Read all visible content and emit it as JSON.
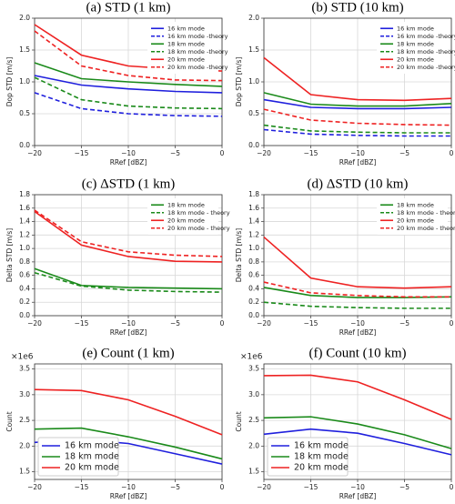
{
  "chart_data": [
    {
      "type": "line",
      "title": "(a)  STD (1 km)",
      "x_label": "RRef [dBZ]",
      "y_label": "Dop STD [m/s]",
      "x": [
        -20,
        -15,
        -10,
        -5,
        0
      ],
      "xlim": [
        -20,
        0
      ],
      "xticks": [
        {
          "value": -20,
          "label": "−20"
        },
        {
          "value": -15,
          "label": "−15"
        },
        {
          "value": -10,
          "label": "−10"
        },
        {
          "value": -5,
          "label": "−5"
        },
        0
      ],
      "ylim": [
        0,
        2.0
      ],
      "yticks": [
        {
          "value": 0,
          "label": "0.0"
        },
        0.5,
        {
          "value": 1,
          "label": "1.0"
        },
        1.5,
        {
          "value": 2,
          "label": "2.0"
        }
      ],
      "grid": true,
      "legend": "upper right",
      "series": [
        {
          "name": "16 km mode",
          "color": "#1f1fdd",
          "linestyle": "solid",
          "values": [
            1.1,
            0.95,
            0.89,
            0.85,
            0.83
          ]
        },
        {
          "name": "16 km mode -theory",
          "color": "#1f1fdd",
          "linestyle": "dashed",
          "values": [
            0.83,
            0.58,
            0.5,
            0.47,
            0.46
          ]
        },
        {
          "name": "18 km mode",
          "color": "#1a8a1a",
          "linestyle": "solid",
          "values": [
            1.3,
            1.05,
            1.0,
            0.96,
            0.93
          ]
        },
        {
          "name": "18 km mode -theory",
          "color": "#1a8a1a",
          "linestyle": "dashed",
          "values": [
            1.07,
            0.72,
            0.62,
            0.59,
            0.58
          ]
        },
        {
          "name": "20 km mode",
          "color": "#ee2222",
          "linestyle": "solid",
          "values": [
            1.9,
            1.42,
            1.25,
            1.2,
            1.17
          ]
        },
        {
          "name": "20 km mode -theory",
          "color": "#ee2222",
          "linestyle": "dashed",
          "values": [
            1.8,
            1.25,
            1.1,
            1.03,
            1.02
          ]
        }
      ]
    },
    {
      "type": "line",
      "title": "(b) STD (10 km)",
      "x_label": "RRef [dBZ]",
      "y_label": "Dop STD [m/s]",
      "x": [
        -20,
        -15,
        -10,
        -5,
        0
      ],
      "xlim": [
        -20,
        0
      ],
      "xticks": [
        {
          "value": -20,
          "label": "−20"
        },
        {
          "value": -15,
          "label": "−15"
        },
        {
          "value": -10,
          "label": "−10"
        },
        {
          "value": -5,
          "label": "−5"
        },
        0
      ],
      "ylim": [
        0,
        2.0
      ],
      "yticks": [
        {
          "value": 0,
          "label": "0.0"
        },
        0.5,
        {
          "value": 1,
          "label": "1.0"
        },
        1.5,
        {
          "value": 2,
          "label": "2.0"
        }
      ],
      "grid": true,
      "legend": "upper right",
      "series": [
        {
          "name": "16 km mode",
          "color": "#1f1fdd",
          "linestyle": "solid",
          "values": [
            0.72,
            0.6,
            0.58,
            0.58,
            0.6
          ]
        },
        {
          "name": "16 km mode -theory",
          "color": "#1f1fdd",
          "linestyle": "dashed",
          "values": [
            0.25,
            0.18,
            0.16,
            0.15,
            0.15
          ]
        },
        {
          "name": "18 km mode",
          "color": "#1a8a1a",
          "linestyle": "solid",
          "values": [
            0.83,
            0.65,
            0.62,
            0.62,
            0.66
          ]
        },
        {
          "name": "18 km mode -theory",
          "color": "#1a8a1a",
          "linestyle": "dashed",
          "values": [
            0.32,
            0.23,
            0.21,
            0.2,
            0.2
          ]
        },
        {
          "name": "20 km mode",
          "color": "#ee2222",
          "linestyle": "solid",
          "values": [
            1.38,
            0.8,
            0.72,
            0.71,
            0.74
          ]
        },
        {
          "name": "20 km mode -theory",
          "color": "#ee2222",
          "linestyle": "dashed",
          "values": [
            0.57,
            0.4,
            0.35,
            0.33,
            0.32
          ]
        }
      ]
    },
    {
      "type": "line",
      "title": "(c)  ΔSTD (1 km)",
      "x_label": "RRef [dBZ]",
      "y_label": "Delta STD [m/s]",
      "x": [
        -20,
        -15,
        -10,
        -5,
        0
      ],
      "xlim": [
        -20,
        0
      ],
      "xticks": [
        {
          "value": -20,
          "label": "−20"
        },
        {
          "value": -15,
          "label": "−15"
        },
        {
          "value": -10,
          "label": "−10"
        },
        {
          "value": -5,
          "label": "−5"
        },
        0
      ],
      "ylim": [
        0,
        1.8
      ],
      "yticks": [
        {
          "value": 0,
          "label": "0.0"
        },
        0.2,
        0.4,
        0.6,
        0.8,
        {
          "value": 1,
          "label": "1.0"
        },
        1.2,
        1.4,
        1.6,
        1.8
      ],
      "grid": true,
      "legend": "upper right",
      "series": [
        {
          "name": "18 km mode",
          "color": "#1a8a1a",
          "linestyle": "solid",
          "values": [
            0.7,
            0.45,
            0.42,
            0.41,
            0.4
          ]
        },
        {
          "name": "18 km mode - theory",
          "color": "#1a8a1a",
          "linestyle": "dashed",
          "values": [
            0.64,
            0.44,
            0.38,
            0.36,
            0.35
          ]
        },
        {
          "name": "20 km mode",
          "color": "#ee2222",
          "linestyle": "solid",
          "values": [
            1.55,
            1.05,
            0.88,
            0.81,
            0.8
          ]
        },
        {
          "name": "20 km mode - theory",
          "color": "#ee2222",
          "linestyle": "dashed",
          "values": [
            1.57,
            1.1,
            0.95,
            0.9,
            0.88
          ]
        }
      ]
    },
    {
      "type": "line",
      "title": "(d) ΔSTD (10 km)",
      "x_label": "RRef [dBZ]",
      "y_label": "Delta STD [m/s]",
      "x": [
        -20,
        -15,
        -10,
        -5,
        0
      ],
      "xlim": [
        -20,
        0
      ],
      "xticks": [
        {
          "value": -20,
          "label": "−20"
        },
        {
          "value": -15,
          "label": "−15"
        },
        {
          "value": -10,
          "label": "−10"
        },
        {
          "value": -5,
          "label": "−5"
        },
        0
      ],
      "ylim": [
        0,
        1.8
      ],
      "yticks": [
        {
          "value": 0,
          "label": "0.0"
        },
        0.2,
        0.4,
        0.6,
        0.8,
        {
          "value": 1,
          "label": "1.0"
        },
        1.2,
        1.4,
        1.6,
        1.8
      ],
      "grid": true,
      "legend": "upper right",
      "series": [
        {
          "name": "18 km mode",
          "color": "#1a8a1a",
          "linestyle": "solid",
          "values": [
            0.42,
            0.3,
            0.27,
            0.27,
            0.28
          ]
        },
        {
          "name": "18 km mode - theory",
          "color": "#1a8a1a",
          "linestyle": "dashed",
          "values": [
            0.2,
            0.14,
            0.12,
            0.11,
            0.11
          ]
        },
        {
          "name": "20 km mode",
          "color": "#ee2222",
          "linestyle": "solid",
          "values": [
            1.17,
            0.56,
            0.43,
            0.41,
            0.43
          ]
        },
        {
          "name": "20 km mode - theory",
          "color": "#ee2222",
          "linestyle": "dashed",
          "values": [
            0.5,
            0.34,
            0.3,
            0.28,
            0.28
          ]
        }
      ]
    },
    {
      "type": "line",
      "title": "(e) Count (1 km)",
      "x_label": "RRef [dBZ]",
      "y_label": "Count",
      "y_offset_label": "×1e6",
      "x": [
        -20,
        -15,
        -10,
        -5,
        0
      ],
      "xlim": [
        -20,
        0
      ],
      "xticks": [
        {
          "value": -20,
          "label": "−20"
        },
        {
          "value": -15,
          "label": "−15"
        },
        {
          "value": -10,
          "label": "−10"
        },
        {
          "value": -5,
          "label": "−5"
        },
        0
      ],
      "ylim": [
        1.35,
        3.6
      ],
      "yticks": [
        1.5,
        {
          "value": 2,
          "label": "2.0"
        },
        2.5,
        {
          "value": 3,
          "label": "3.0"
        },
        3.5
      ],
      "grid": true,
      "legend": "lower left",
      "series": [
        {
          "name": "16 km mode",
          "color": "#1f1fdd",
          "linestyle": "solid",
          "values": [
            2.07,
            2.13,
            2.05,
            1.85,
            1.65
          ]
        },
        {
          "name": "18 km mode",
          "color": "#1a8a1a",
          "linestyle": "solid",
          "values": [
            2.33,
            2.35,
            2.18,
            1.98,
            1.75
          ]
        },
        {
          "name": "20 km mode",
          "color": "#ee2222",
          "linestyle": "solid",
          "values": [
            3.1,
            3.08,
            2.9,
            2.58,
            2.22
          ]
        }
      ]
    },
    {
      "type": "line",
      "title": "(f) Count (10 km)",
      "x_label": "RRef [dBZ]",
      "y_label": "Count",
      "y_offset_label": "×1e6",
      "x": [
        -20,
        -15,
        -10,
        -5,
        0
      ],
      "xlim": [
        -20,
        0
      ],
      "xticks": [
        {
          "value": -20,
          "label": "−20"
        },
        {
          "value": -15,
          "label": "−15"
        },
        {
          "value": -10,
          "label": "−10"
        },
        {
          "value": -5,
          "label": "−5"
        },
        0
      ],
      "ylim": [
        1.35,
        3.6
      ],
      "yticks": [
        1.5,
        {
          "value": 2,
          "label": "2.0"
        },
        2.5,
        {
          "value": 3,
          "label": "3.0"
        },
        3.5
      ],
      "grid": true,
      "legend": "lower left",
      "series": [
        {
          "name": "16 km mode",
          "color": "#1f1fdd",
          "linestyle": "solid",
          "values": [
            2.23,
            2.33,
            2.25,
            2.05,
            1.83
          ]
        },
        {
          "name": "18 km mode",
          "color": "#1a8a1a",
          "linestyle": "solid",
          "values": [
            2.55,
            2.57,
            2.43,
            2.22,
            1.95
          ]
        },
        {
          "name": "20 km mode",
          "color": "#ee2222",
          "linestyle": "solid",
          "values": [
            3.37,
            3.38,
            3.25,
            2.9,
            2.52
          ]
        }
      ]
    }
  ]
}
